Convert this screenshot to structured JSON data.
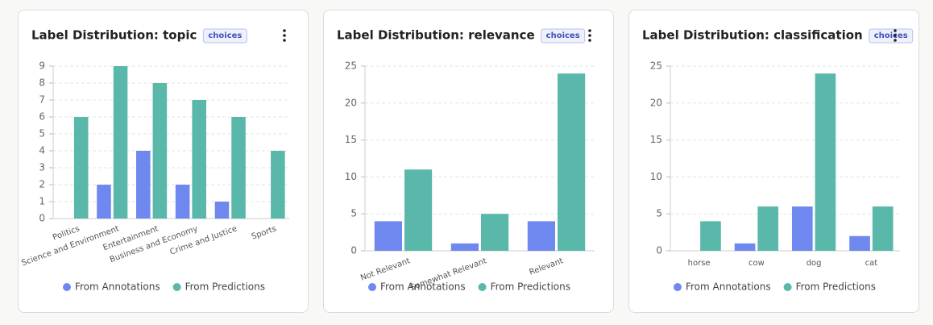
{
  "chart_data": [
    {
      "type": "bar",
      "title": "Label Distribution: topic",
      "badge": "choices",
      "categories": [
        "Politics",
        "Science and Environment",
        "Entertainment",
        "Business and Economy",
        "Crime and Justice",
        "Sports"
      ],
      "series": [
        {
          "name": "From Annotations",
          "color": "#6f88f0",
          "values": [
            0,
            2,
            4,
            2,
            1,
            0
          ]
        },
        {
          "name": "From Predictions",
          "color": "#5ab8aa",
          "values": [
            6,
            9,
            8,
            7,
            6,
            4
          ]
        }
      ],
      "ylim": [
        0,
        9
      ],
      "yticks": [
        0,
        1,
        2,
        3,
        4,
        5,
        6,
        7,
        8,
        9
      ],
      "grid": true
    },
    {
      "type": "bar",
      "title": "Label Distribution: relevance",
      "badge": "choices",
      "categories": [
        "Not Relevant",
        "Somewhat Relevant",
        "Relevant"
      ],
      "series": [
        {
          "name": "From Annotations",
          "color": "#6f88f0",
          "values": [
            4,
            1,
            4
          ]
        },
        {
          "name": "From Predictions",
          "color": "#5ab8aa",
          "values": [
            11,
            5,
            24
          ]
        }
      ],
      "ylim": [
        0,
        25
      ],
      "yticks": [
        0,
        5,
        10,
        15,
        20,
        25
      ],
      "grid": true
    },
    {
      "type": "bar",
      "title": "Label Distribution: classification",
      "badge": "choices",
      "categories": [
        "horse",
        "cow",
        "dog",
        "cat"
      ],
      "series": [
        {
          "name": "From Annotations",
          "color": "#6f88f0",
          "values": [
            0,
            1,
            6,
            2
          ]
        },
        {
          "name": "From Predictions",
          "color": "#5ab8aa",
          "values": [
            4,
            6,
            24,
            6
          ]
        }
      ],
      "ylim": [
        0,
        25
      ],
      "yticks": [
        0,
        5,
        10,
        15,
        20,
        25
      ],
      "grid": true
    }
  ]
}
